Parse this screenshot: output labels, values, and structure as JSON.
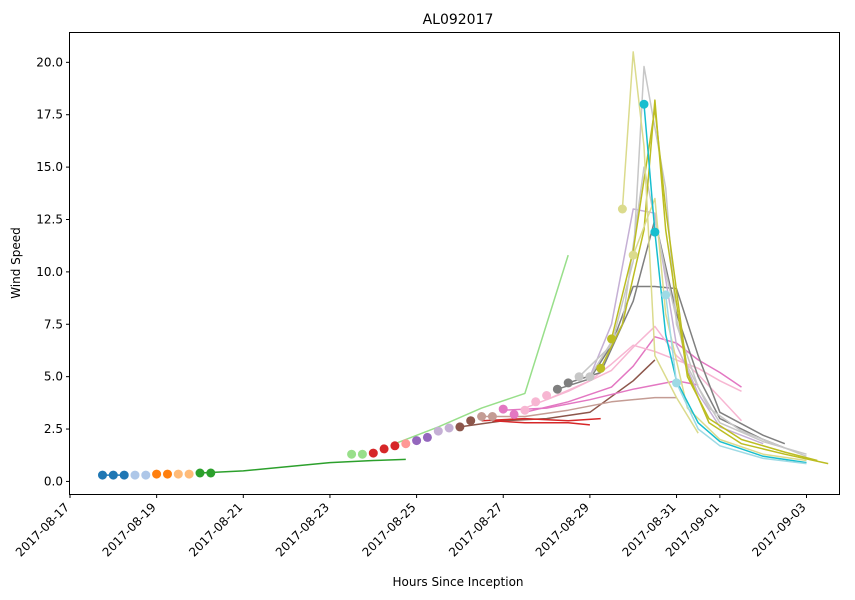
{
  "chart_data": {
    "type": "line",
    "title": "AL092017",
    "xlabel": "Hours Since Inception",
    "ylabel": "Wind Speed",
    "x_axis_type": "date",
    "xlim": [
      "2017-08-17 00:00",
      "2017-09-03 18:00"
    ],
    "ylim": [
      -0.6,
      21.4
    ],
    "grid": false,
    "x_ticks": [
      "2017-08-17",
      "2017-08-19",
      "2017-08-21",
      "2017-08-23",
      "2017-08-25",
      "2017-08-27",
      "2017-08-29",
      "2017-08-31",
      "2017-09-01",
      "2017-09-03"
    ],
    "y_ticks": [
      0.0,
      2.5,
      5.0,
      7.5,
      10.0,
      12.5,
      15.0,
      17.5,
      20.0
    ],
    "markers": [
      {
        "x": "2017-08-17 18:00",
        "y": 0.3,
        "color": "#1f77b4"
      },
      {
        "x": "2017-08-18 00:00",
        "y": 0.3,
        "color": "#1f77b4"
      },
      {
        "x": "2017-08-18 06:00",
        "y": 0.3,
        "color": "#1f77b4"
      },
      {
        "x": "2017-08-18 12:00",
        "y": 0.3,
        "color": "#aec7e8"
      },
      {
        "x": "2017-08-18 18:00",
        "y": 0.3,
        "color": "#aec7e8"
      },
      {
        "x": "2017-08-19 00:00",
        "y": 0.35,
        "color": "#ff7f0e"
      },
      {
        "x": "2017-08-19 06:00",
        "y": 0.35,
        "color": "#ff7f0e"
      },
      {
        "x": "2017-08-19 12:00",
        "y": 0.35,
        "color": "#ffbb78"
      },
      {
        "x": "2017-08-19 18:00",
        "y": 0.35,
        "color": "#ffbb78"
      },
      {
        "x": "2017-08-20 00:00",
        "y": 0.4,
        "color": "#2ca02c"
      },
      {
        "x": "2017-08-20 06:00",
        "y": 0.4,
        "color": "#2ca02c"
      },
      {
        "x": "2017-08-23 12:00",
        "y": 1.3,
        "color": "#98df8a"
      },
      {
        "x": "2017-08-23 18:00",
        "y": 1.3,
        "color": "#98df8a"
      },
      {
        "x": "2017-08-24 00:00",
        "y": 1.35,
        "color": "#d62728"
      },
      {
        "x": "2017-08-24 06:00",
        "y": 1.55,
        "color": "#d62728"
      },
      {
        "x": "2017-08-24 12:00",
        "y": 1.7,
        "color": "#d62728"
      },
      {
        "x": "2017-08-24 18:00",
        "y": 1.8,
        "color": "#ff9896"
      },
      {
        "x": "2017-08-25 00:00",
        "y": 1.95,
        "color": "#9467bd"
      },
      {
        "x": "2017-08-25 06:00",
        "y": 2.1,
        "color": "#9467bd"
      },
      {
        "x": "2017-08-25 12:00",
        "y": 2.4,
        "color": "#c5b0d5"
      },
      {
        "x": "2017-08-25 18:00",
        "y": 2.55,
        "color": "#c5b0d5"
      },
      {
        "x": "2017-08-26 00:00",
        "y": 2.6,
        "color": "#8c564b"
      },
      {
        "x": "2017-08-26 06:00",
        "y": 2.9,
        "color": "#8c564b"
      },
      {
        "x": "2017-08-26 12:00",
        "y": 3.1,
        "color": "#c49c94"
      },
      {
        "x": "2017-08-26 18:00",
        "y": 3.1,
        "color": "#c49c94"
      },
      {
        "x": "2017-08-27 00:00",
        "y": 3.45,
        "color": "#e377c2"
      },
      {
        "x": "2017-08-27 06:00",
        "y": 3.2,
        "color": "#e377c2"
      },
      {
        "x": "2017-08-27 12:00",
        "y": 3.4,
        "color": "#f7b6d2"
      },
      {
        "x": "2017-08-27 18:00",
        "y": 3.8,
        "color": "#f7b6d2"
      },
      {
        "x": "2017-08-28 00:00",
        "y": 4.1,
        "color": "#f7b6d2"
      },
      {
        "x": "2017-08-28 06:00",
        "y": 4.4,
        "color": "#7f7f7f"
      },
      {
        "x": "2017-08-28 12:00",
        "y": 4.7,
        "color": "#7f7f7f"
      },
      {
        "x": "2017-08-28 18:00",
        "y": 5.0,
        "color": "#c7c7c7"
      },
      {
        "x": "2017-08-29 00:00",
        "y": 5.0,
        "color": "#c7c7c7"
      },
      {
        "x": "2017-08-29 06:00",
        "y": 5.4,
        "color": "#bcbd22"
      },
      {
        "x": "2017-08-29 12:00",
        "y": 6.8,
        "color": "#bcbd22"
      },
      {
        "x": "2017-08-29 18:00",
        "y": 13.0,
        "color": "#dbdb8d"
      },
      {
        "x": "2017-08-30 00:00",
        "y": 10.8,
        "color": "#dbdb8d"
      },
      {
        "x": "2017-08-30 06:00",
        "y": 18.0,
        "color": "#17becf"
      },
      {
        "x": "2017-08-30 12:00",
        "y": 11.9,
        "color": "#17becf"
      },
      {
        "x": "2017-08-30 18:00",
        "y": 8.9,
        "color": "#9edae5"
      },
      {
        "x": "2017-08-31 00:00",
        "y": 4.7,
        "color": "#9edae5"
      }
    ],
    "series": [
      {
        "color": "#1f77b4",
        "points": [
          [
            "2017-08-17 18:00",
            0.3
          ],
          [
            "2017-08-18 06:00",
            0.3
          ]
        ]
      },
      {
        "color": "#2ca02c",
        "points": [
          [
            "2017-08-20 00:00",
            0.4
          ],
          [
            "2017-08-21 00:00",
            0.5
          ],
          [
            "2017-08-22 00:00",
            0.7
          ],
          [
            "2017-08-23 00:00",
            0.9
          ],
          [
            "2017-08-24 00:00",
            1.0
          ],
          [
            "2017-08-24 18:00",
            1.05
          ]
        ]
      },
      {
        "color": "#98df8a",
        "points": [
          [
            "2017-08-24 12:00",
            1.8
          ],
          [
            "2017-08-25 12:00",
            2.6
          ],
          [
            "2017-08-26 12:00",
            3.5
          ],
          [
            "2017-08-27 12:00",
            4.2
          ],
          [
            "2017-08-28 12:00",
            10.8
          ]
        ]
      },
      {
        "color": "#8c564b",
        "points": [
          [
            "2017-08-26 00:00",
            2.6
          ],
          [
            "2017-08-27 00:00",
            2.9
          ],
          [
            "2017-08-28 00:00",
            3.0
          ],
          [
            "2017-08-29 00:00",
            3.3
          ],
          [
            "2017-08-30 00:00",
            4.8
          ],
          [
            "2017-08-30 12:00",
            5.8
          ]
        ]
      },
      {
        "color": "#d62728",
        "points": [
          [
            "2017-08-26 12:00",
            2.9
          ],
          [
            "2017-08-27 12:00",
            3.0
          ],
          [
            "2017-08-28 12:00",
            2.9
          ],
          [
            "2017-08-29 06:00",
            3.0
          ]
        ]
      },
      {
        "color": "#d62728",
        "points": [
          [
            "2017-08-26 18:00",
            2.9
          ],
          [
            "2017-08-27 12:00",
            2.8
          ],
          [
            "2017-08-28 12:00",
            2.8
          ],
          [
            "2017-08-29 00:00",
            2.7
          ]
        ]
      },
      {
        "color": "#c49c94",
        "points": [
          [
            "2017-08-26 12:00",
            3.1
          ],
          [
            "2017-08-27 12:00",
            3.1
          ],
          [
            "2017-08-28 12:00",
            3.4
          ],
          [
            "2017-08-29 12:00",
            3.8
          ],
          [
            "2017-08-30 12:00",
            4.0
          ],
          [
            "2017-08-31 00:00",
            4.0
          ]
        ]
      },
      {
        "color": "#e377c2",
        "points": [
          [
            "2017-08-27 00:00",
            3.4
          ],
          [
            "2017-08-28 00:00",
            3.5
          ],
          [
            "2017-08-29 00:00",
            3.9
          ],
          [
            "2017-08-30 00:00",
            4.4
          ],
          [
            "2017-08-30 12:00",
            4.6
          ],
          [
            "2017-08-31 00:00",
            4.8
          ],
          [
            "2017-08-31 12:00",
            4.6
          ]
        ]
      },
      {
        "color": "#e377c2",
        "points": [
          [
            "2017-08-27 12:00",
            3.3
          ],
          [
            "2017-08-28 12:00",
            3.8
          ],
          [
            "2017-08-29 12:00",
            4.5
          ],
          [
            "2017-08-30 00:00",
            5.5
          ],
          [
            "2017-08-30 12:00",
            6.9
          ],
          [
            "2017-08-31 00:00",
            6.6
          ],
          [
            "2017-08-31 12:00",
            5.8
          ],
          [
            "2017-09-01 00:00",
            5.2
          ],
          [
            "2017-09-01 12:00",
            4.5
          ]
        ]
      },
      {
        "color": "#f7b6d2",
        "points": [
          [
            "2017-08-27 12:00",
            3.5
          ],
          [
            "2017-08-28 12:00",
            4.3
          ],
          [
            "2017-08-29 12:00",
            5.3
          ],
          [
            "2017-08-30 00:00",
            6.4
          ],
          [
            "2017-08-30 12:00",
            7.4
          ],
          [
            "2017-08-31 00:00",
            6.0
          ],
          [
            "2017-08-31 12:00",
            5.1
          ],
          [
            "2017-09-01 00:00",
            4.0
          ],
          [
            "2017-09-01 12:00",
            2.9
          ]
        ]
      },
      {
        "color": "#f7b6d2",
        "points": [
          [
            "2017-08-28 00:00",
            3.9
          ],
          [
            "2017-08-29 00:00",
            4.8
          ],
          [
            "2017-08-29 12:00",
            5.6
          ],
          [
            "2017-08-30 00:00",
            6.5
          ],
          [
            "2017-08-30 12:00",
            6.2
          ],
          [
            "2017-08-31 00:00",
            5.8
          ],
          [
            "2017-08-31 12:00",
            5.4
          ],
          [
            "2017-09-01 00:00",
            4.8
          ],
          [
            "2017-09-01 12:00",
            4.3
          ]
        ]
      },
      {
        "color": "#7f7f7f",
        "points": [
          [
            "2017-08-28 06:00",
            4.4
          ],
          [
            "2017-08-29 00:00",
            4.9
          ],
          [
            "2017-08-29 12:00",
            6.5
          ],
          [
            "2017-08-30 00:00",
            9.3
          ],
          [
            "2017-08-30 12:00",
            9.3
          ],
          [
            "2017-08-31 00:00",
            9.2
          ],
          [
            "2017-08-31 12:00",
            6.0
          ],
          [
            "2017-09-01 00:00",
            3.3
          ],
          [
            "2017-09-02 00:00",
            2.2
          ],
          [
            "2017-09-02 12:00",
            1.8
          ]
        ]
      },
      {
        "color": "#7f7f7f",
        "points": [
          [
            "2017-08-28 12:00",
            4.7
          ],
          [
            "2017-08-29 06:00",
            5.2
          ],
          [
            "2017-08-30 00:00",
            8.6
          ],
          [
            "2017-08-30 12:00",
            12.5
          ],
          [
            "2017-08-31 00:00",
            8.0
          ],
          [
            "2017-08-31 12:00",
            5.0
          ],
          [
            "2017-09-01 00:00",
            3.0
          ],
          [
            "2017-09-02 00:00",
            2.0
          ],
          [
            "2017-09-02 12:00",
            1.6
          ]
        ]
      },
      {
        "color": "#c5b0d5",
        "points": [
          [
            "2017-08-29 00:00",
            5.0
          ],
          [
            "2017-08-29 12:00",
            7.5
          ],
          [
            "2017-08-30 00:00",
            13.0
          ],
          [
            "2017-08-30 12:00",
            12.8
          ],
          [
            "2017-08-31 00:00",
            6.5
          ],
          [
            "2017-08-31 12:00",
            4.2
          ],
          [
            "2017-09-01 00:00",
            2.6
          ],
          [
            "2017-09-02 00:00",
            1.8
          ]
        ]
      },
      {
        "color": "#c7c7c7",
        "points": [
          [
            "2017-08-28 18:00",
            5.0
          ],
          [
            "2017-08-29 12:00",
            6.5
          ],
          [
            "2017-08-30 00:00",
            10.5
          ],
          [
            "2017-08-30 06:00",
            19.8
          ],
          [
            "2017-08-30 18:00",
            14.0
          ],
          [
            "2017-08-31 00:00",
            7.5
          ],
          [
            "2017-08-31 12:00",
            4.5
          ],
          [
            "2017-09-01 00:00",
            2.8
          ],
          [
            "2017-09-02 00:00",
            1.9
          ],
          [
            "2017-09-03 00:00",
            1.3
          ]
        ]
      },
      {
        "color": "#c7c7c7",
        "points": [
          [
            "2017-08-29 00:00",
            5.0
          ],
          [
            "2017-08-29 18:00",
            7.5
          ],
          [
            "2017-08-30 06:00",
            15.0
          ],
          [
            "2017-08-30 18:00",
            10.0
          ],
          [
            "2017-08-31 06:00",
            5.5
          ],
          [
            "2017-08-31 18:00",
            3.5
          ],
          [
            "2017-09-01 12:00",
            2.4
          ],
          [
            "2017-09-02 12:00",
            1.6
          ],
          [
            "2017-09-03 00:00",
            1.2
          ]
        ]
      },
      {
        "color": "#bcbd22",
        "points": [
          [
            "2017-08-29 06:00",
            5.4
          ],
          [
            "2017-08-29 18:00",
            7.5
          ],
          [
            "2017-08-30 06:00",
            12.0
          ],
          [
            "2017-08-30 12:00",
            18.2
          ],
          [
            "2017-08-30 18:00",
            12.0
          ],
          [
            "2017-08-31 06:00",
            5.0
          ],
          [
            "2017-08-31 18:00",
            3.0
          ],
          [
            "2017-09-01 12:00",
            2.0
          ],
          [
            "2017-09-02 12:00",
            1.4
          ],
          [
            "2017-09-03 06:00",
            1.0
          ]
        ]
      },
      {
        "color": "#bcbd22",
        "points": [
          [
            "2017-08-29 12:00",
            6.8
          ],
          [
            "2017-08-30 00:00",
            11.0
          ],
          [
            "2017-08-30 12:00",
            17.8
          ],
          [
            "2017-08-30 18:00",
            13.0
          ],
          [
            "2017-08-31 06:00",
            5.2
          ],
          [
            "2017-08-31 18:00",
            2.8
          ],
          [
            "2017-09-01 12:00",
            1.8
          ],
          [
            "2017-09-02 12:00",
            1.3
          ],
          [
            "2017-09-03 12:00",
            0.85
          ]
        ]
      },
      {
        "color": "#dbdb8d",
        "points": [
          [
            "2017-08-29 18:00",
            13.0
          ],
          [
            "2017-08-30 00:00",
            20.5
          ],
          [
            "2017-08-30 06:00",
            16.0
          ],
          [
            "2017-08-30 12:00",
            6.0
          ],
          [
            "2017-08-31 00:00",
            4.0
          ],
          [
            "2017-08-31 12:00",
            2.3
          ]
        ]
      },
      {
        "color": "#dbdb8d",
        "points": [
          [
            "2017-08-30 00:00",
            10.8
          ],
          [
            "2017-08-30 12:00",
            13.5
          ],
          [
            "2017-08-30 18:00",
            8.0
          ],
          [
            "2017-08-31 06:00",
            3.5
          ],
          [
            "2017-09-01 00:00",
            2.0
          ],
          [
            "2017-09-02 00:00",
            1.3
          ],
          [
            "2017-09-03 00:00",
            1.0
          ]
        ]
      },
      {
        "color": "#17becf",
        "points": [
          [
            "2017-08-30 06:00",
            18.0
          ],
          [
            "2017-08-30 12:00",
            11.9
          ],
          [
            "2017-08-30 18:00",
            7.0
          ],
          [
            "2017-08-31 00:00",
            4.8
          ],
          [
            "2017-08-31 12:00",
            2.8
          ],
          [
            "2017-09-01 00:00",
            1.9
          ],
          [
            "2017-09-02 00:00",
            1.2
          ],
          [
            "2017-09-03 00:00",
            0.9
          ]
        ]
      },
      {
        "color": "#9edae5",
        "points": [
          [
            "2017-08-30 18:00",
            8.9
          ],
          [
            "2017-08-31 00:00",
            4.7
          ],
          [
            "2017-08-31 12:00",
            2.5
          ],
          [
            "2017-09-01 00:00",
            1.7
          ],
          [
            "2017-09-02 00:00",
            1.1
          ],
          [
            "2017-09-03 00:00",
            0.85
          ]
        ]
      }
    ]
  }
}
